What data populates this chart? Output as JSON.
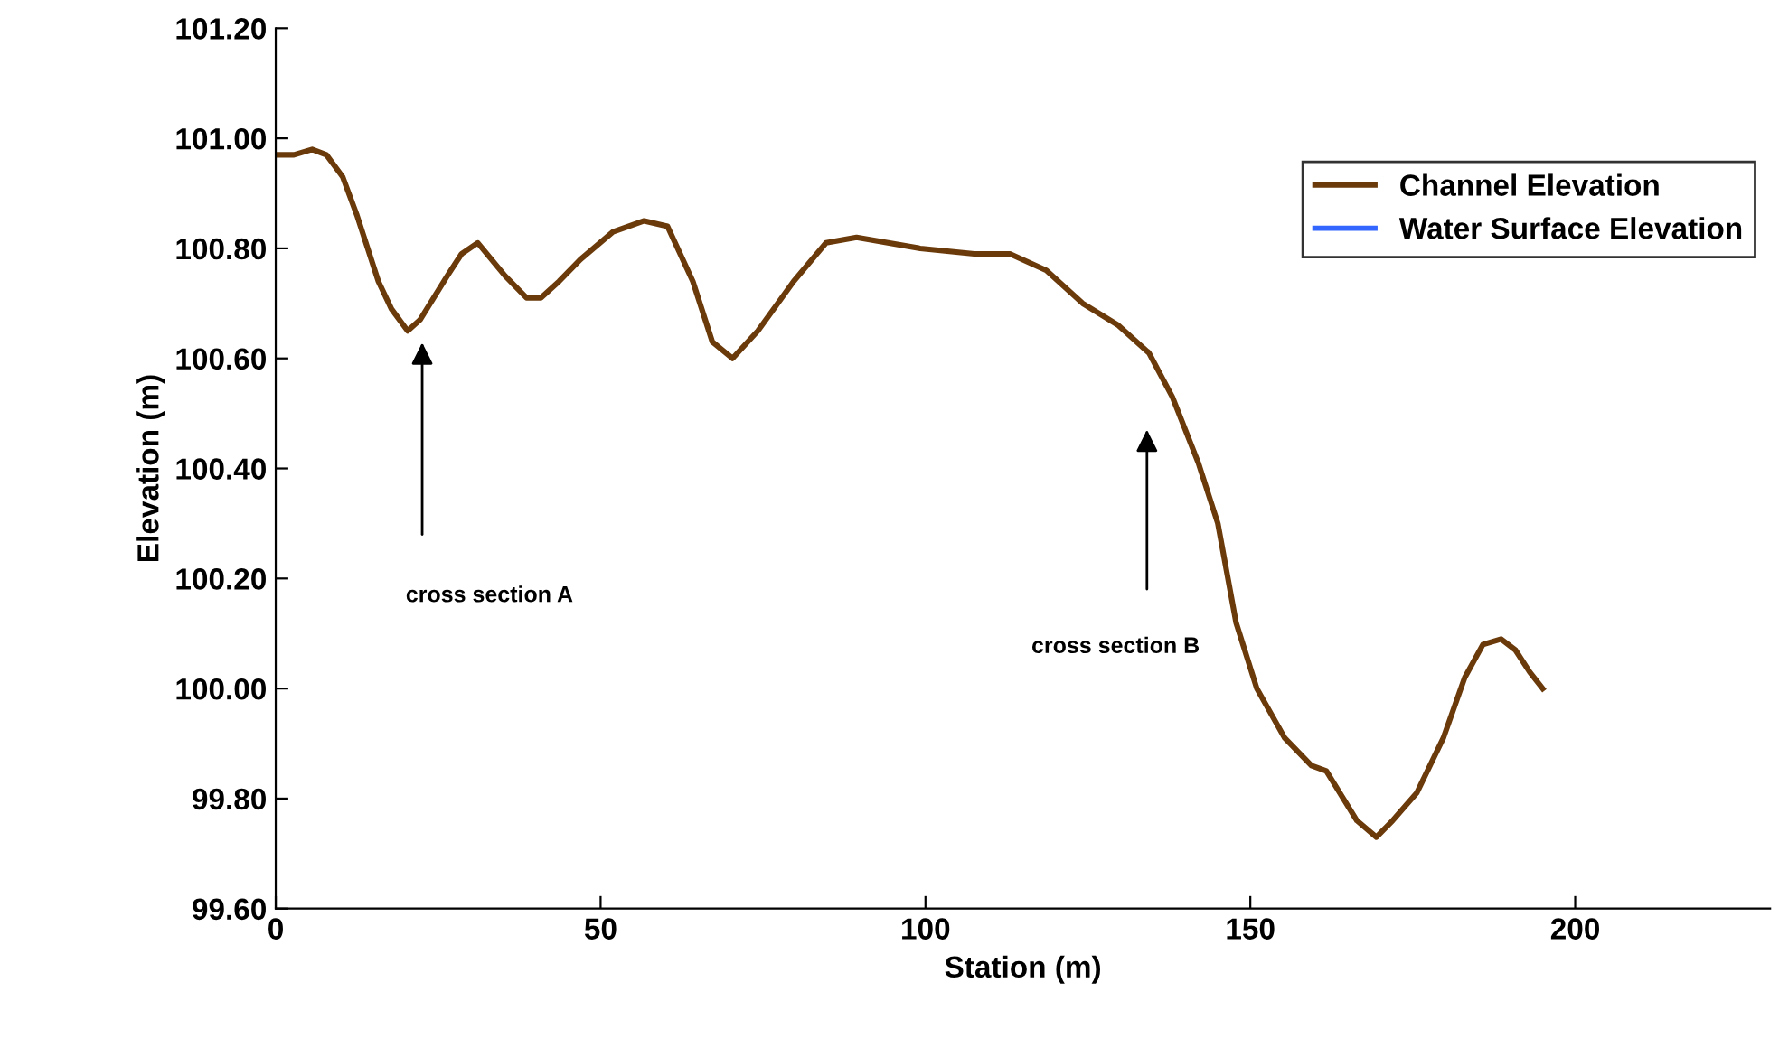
{
  "chart_data": {
    "type": "line",
    "xlabel": "Station (m)",
    "ylabel": "Elevation (m)",
    "xlim": [
      0,
      230
    ],
    "xticks": [
      0,
      50,
      100,
      150,
      200
    ],
    "ylim": [
      99.6,
      101.2
    ],
    "yticks": [
      {
        "value": 99.6,
        "label": "99.60"
      },
      {
        "value": 99.8,
        "label": "99.80"
      },
      {
        "value": 100.0,
        "label": "100.00"
      },
      {
        "value": 100.2,
        "label": "100.20"
      },
      {
        "value": 100.4,
        "label": "100.40"
      },
      {
        "value": 100.6,
        "label": "100.60"
      },
      {
        "value": 100.8,
        "label": "100.80"
      },
      {
        "value": 101.0,
        "label": "101.00"
      },
      {
        "value": 101.2,
        "label": "101.20"
      }
    ],
    "x": [
      0,
      2.8,
      5.6,
      7.8,
      10.3,
      12.5,
      15.8,
      17.8,
      20.3,
      22.2,
      26.4,
      28.6,
      31.1,
      35.3,
      38.6,
      40.8,
      43.6,
      46.9,
      51.9,
      56.7,
      60.3,
      64.2,
      67.2,
      70.3,
      74.2,
      79.7,
      84.7,
      89.4,
      99.2,
      107.5,
      113,
      118.6,
      124.2,
      129.7,
      134.4,
      138,
      142,
      145,
      147.8,
      151,
      155.3,
      159.4,
      161.7,
      166.4,
      169.4,
      171.9,
      175.6,
      179.7,
      183,
      185.8,
      188.6,
      190.8,
      193,
      195
    ],
    "series": [
      {
        "name": "Channel Elevation",
        "color": "#6b3a0a",
        "values": [
          100.97,
          100.97,
          100.98,
          100.97,
          100.93,
          100.86,
          100.74,
          100.69,
          100.65,
          100.67,
          100.75,
          100.79,
          100.81,
          100.75,
          100.71,
          100.71,
          100.74,
          100.78,
          100.83,
          100.85,
          100.84,
          100.74,
          100.63,
          100.6,
          100.65,
          100.74,
          100.81,
          100.82,
          100.8,
          100.79,
          100.79,
          100.76,
          100.7,
          100.66,
          100.61,
          100.53,
          100.41,
          100.3,
          100.12,
          100.0,
          99.91,
          99.86,
          99.85,
          99.76,
          99.73,
          99.76,
          99.81,
          99.91,
          100.02,
          100.08,
          100.09,
          100.07,
          100.03,
          100.0
        ]
      },
      {
        "name": "Water Surface Elevation",
        "color": "#3366ff",
        "values": [
          null,
          null,
          null,
          null,
          null,
          null,
          null,
          null,
          null,
          null,
          null,
          null,
          null,
          null,
          null,
          null,
          null,
          null,
          null,
          null,
          null,
          null,
          null,
          null,
          null,
          null,
          null,
          null,
          null,
          null,
          null,
          null,
          null,
          null,
          null,
          null,
          null,
          null,
          null,
          null,
          null,
          null,
          null,
          null,
          null,
          null,
          null,
          null,
          null,
          null,
          null,
          null,
          null,
          null
        ]
      }
    ],
    "annotations": [
      "cross section A",
      "cross section B"
    ],
    "legend": "top right",
    "grid": false,
    "marker": "none",
    "line_style": "solid"
  }
}
